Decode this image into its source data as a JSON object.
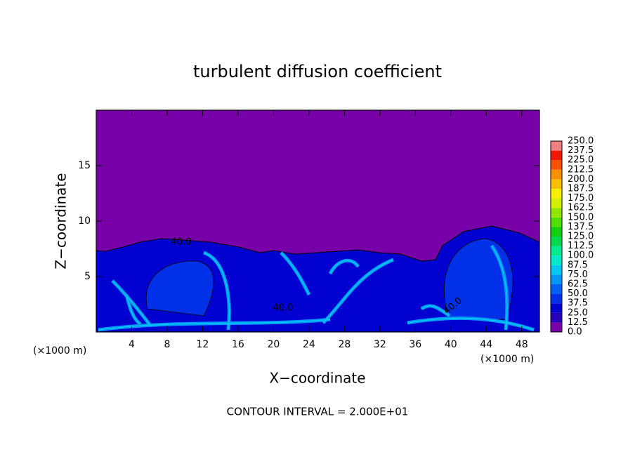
{
  "chart_data": {
    "type": "contour",
    "title": "turbulent diffusion coefficient",
    "xlabel": "X−coordinate",
    "ylabel": "Z−coordinate",
    "x_unit": "(×1000 m)",
    "y_unit": "(×1000 m)",
    "footer": "CONTOUR INTERVAL = 2.000E+01",
    "xlim": [
      0,
      50
    ],
    "ylim": [
      0,
      20
    ],
    "xticks": [
      4,
      8,
      12,
      16,
      20,
      24,
      28,
      32,
      36,
      40,
      44,
      48
    ],
    "yticks": [
      5,
      10,
      15
    ],
    "contour_labels": [
      {
        "value": 40,
        "label": "40.0"
      },
      {
        "value": 40,
        "label": "40.0"
      },
      {
        "value": 40,
        "label": "40.0"
      }
    ],
    "colorbar": {
      "levels": [
        {
          "value": 0,
          "label": "0.0"
        },
        {
          "value": 12.5,
          "label": "12.5"
        },
        {
          "value": 25,
          "label": "25.0"
        },
        {
          "value": 37.5,
          "label": "37.5"
        },
        {
          "value": 50,
          "label": "50.0"
        },
        {
          "value": 62.5,
          "label": "62.5"
        },
        {
          "value": 75,
          "label": "75.0"
        },
        {
          "value": 87.5,
          "label": "87.5"
        },
        {
          "value": 100,
          "label": "100.0"
        },
        {
          "value": 112.5,
          "label": "112.5"
        },
        {
          "value": 125,
          "label": "125.0"
        },
        {
          "value": 137.5,
          "label": "137.5"
        },
        {
          "value": 150,
          "label": "150.0"
        },
        {
          "value": 162.5,
          "label": "162.5"
        },
        {
          "value": 175,
          "label": "175.0"
        },
        {
          "value": 187.5,
          "label": "187.5"
        },
        {
          "value": 200,
          "label": "200.0"
        },
        {
          "value": 212.5,
          "label": "212.5"
        },
        {
          "value": 225,
          "label": "225.0"
        },
        {
          "value": 237.5,
          "label": "237.5"
        },
        {
          "value": 250,
          "label": "250.0"
        }
      ],
      "colors": [
        "#7800a8",
        "#2800b8",
        "#0000d0",
        "#0030e8",
        "#0060f8",
        "#0098f8",
        "#00c8f0",
        "#00e8c8",
        "#00e890",
        "#00d850",
        "#10d010",
        "#50e000",
        "#90e800",
        "#d0f000",
        "#f8f000",
        "#f8c000",
        "#f89000",
        "#f85000",
        "#f01800",
        "#f08080"
      ]
    }
  }
}
